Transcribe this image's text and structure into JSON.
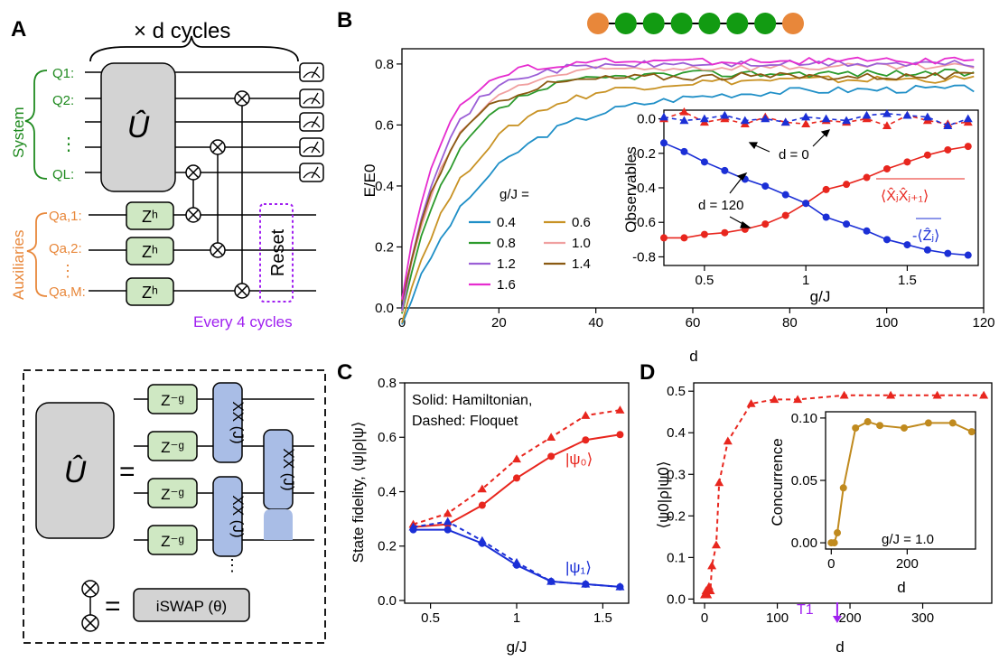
{
  "panels": {
    "a": "A",
    "b": "B",
    "c": "C",
    "d": "D"
  },
  "circuit": {
    "cycles_label": "× d cycles",
    "system_label": "System",
    "aux_label": "Auxiliaries",
    "qubits": [
      "Q1:",
      "Q2:",
      "⋮",
      "QL:"
    ],
    "aux_qubits": [
      "Qa,1:",
      "Qa,2:",
      "⋮",
      "Qa,M:"
    ],
    "u_label": "Û",
    "zh_label": "Zʰ",
    "reset_label": "Reset",
    "every_label": "Every 4 cycles",
    "eq_sign": "=",
    "zg_label": "Z⁻ᵍ",
    "xx_label": "XX (J)",
    "dots": "⋮",
    "iswap_label": "iSWAP (θ)"
  },
  "colors": {
    "system": "#1f8a1f",
    "aux": "#e8873a",
    "reset": "#a020f0",
    "zbox": "#cfe8c3",
    "xxbox": "#a9bde6",
    "gray": "#d3d3d3"
  },
  "chart_data": [
    {
      "id": "B",
      "type": "line",
      "xlabel": "d",
      "ylabel": "E/E0",
      "xlim": [
        0,
        120
      ],
      "ylim": [
        0,
        0.85
      ],
      "xticks": [
        0,
        20,
        40,
        60,
        80,
        100,
        120
      ],
      "yticks": [
        0.0,
        0.2,
        0.4,
        0.6,
        0.8
      ],
      "legend_title": "g/J =",
      "chain": {
        "ends": "#e8873a",
        "middle": "#129b12",
        "count": 8
      },
      "series": [
        {
          "name": "0.4",
          "color": "#1f8fc7",
          "final": 0.72,
          "rate": 0.055
        },
        {
          "name": "0.6",
          "color": "#c89224",
          "final": 0.75,
          "rate": 0.07
        },
        {
          "name": "0.8",
          "color": "#2c9a2c",
          "final": 0.77,
          "rate": 0.09
        },
        {
          "name": "1.0",
          "color": "#f0a0a0",
          "final": 0.79,
          "rate": 0.1
        },
        {
          "name": "1.2",
          "color": "#9b5fd6",
          "final": 0.8,
          "rate": 0.11
        },
        {
          "name": "1.4",
          "color": "#8a5a12",
          "final": 0.76,
          "rate": 0.1
        },
        {
          "name": "1.6",
          "color": "#e62ccf",
          "final": 0.81,
          "rate": 0.12
        }
      ]
    },
    {
      "id": "B-inset",
      "type": "line",
      "xlabel": "g/J",
      "ylabel": "Observables",
      "xlim": [
        0.3,
        1.85
      ],
      "ylim": [
        -0.85,
        0.05
      ],
      "xticks": [
        0.5,
        1.0,
        1.5
      ],
      "yticks": [
        0.0,
        -0.2,
        -0.4,
        -0.6,
        -0.8
      ],
      "annotations": [
        "d = 0",
        "d = 120"
      ],
      "series_labels": [
        "⟨X̂ⱼX̂ⱼ₊₁⟩",
        "-⟨Ẑⱼ⟩"
      ],
      "x": [
        0.3,
        0.4,
        0.5,
        0.6,
        0.7,
        0.8,
        0.9,
        1.0,
        1.1,
        1.2,
        1.3,
        1.4,
        1.5,
        1.6,
        1.7,
        1.8
      ],
      "series": [
        {
          "name": "XX d=120",
          "color": "#e8261e",
          "y": [
            -0.69,
            -0.69,
            -0.67,
            -0.66,
            -0.64,
            -0.61,
            -0.56,
            -0.49,
            -0.41,
            -0.38,
            -0.34,
            -0.29,
            -0.25,
            -0.21,
            -0.18,
            -0.16
          ]
        },
        {
          "name": "Z d=120",
          "color": "#1b2fd6",
          "y": [
            -0.14,
            -0.19,
            -0.25,
            -0.3,
            -0.35,
            -0.39,
            -0.44,
            -0.49,
            -0.57,
            -0.61,
            -0.65,
            -0.7,
            -0.73,
            -0.76,
            -0.78,
            -0.79
          ]
        },
        {
          "name": "XX d=0",
          "color": "#e8261e",
          "y": [
            0.0,
            0.04,
            -0.02,
            0.0,
            -0.03,
            0.01,
            -0.02,
            -0.03,
            -0.01,
            -0.02,
            0.0,
            -0.04,
            0.02,
            -0.01,
            -0.03,
            -0.02
          ]
        },
        {
          "name": "Z d=0",
          "color": "#1b2fd6",
          "y": [
            0.01,
            -0.01,
            0.0,
            0.02,
            -0.01,
            0.0,
            -0.02,
            0.01,
            0.0,
            -0.01,
            0.02,
            0.03,
            0.02,
            0.01,
            -0.04,
            0.0
          ]
        }
      ]
    },
    {
      "id": "C",
      "type": "line",
      "xlabel": "g/J",
      "ylabel": "State fidelity, ⟨ψ|ρ|ψ⟩",
      "xlim": [
        0.35,
        1.65
      ],
      "ylim": [
        -0.01,
        0.8
      ],
      "xticks": [
        0.5,
        1.0,
        1.5
      ],
      "yticks": [
        0.0,
        0.2,
        0.4,
        0.6,
        0.8
      ],
      "note_lines": [
        "Solid: Hamiltonian,",
        "Dashed: Floquet"
      ],
      "state_labels": [
        "|ψ₀⟩",
        "|ψ₁⟩"
      ],
      "x": [
        0.4,
        0.6,
        0.8,
        1.0,
        1.2,
        1.4,
        1.6
      ],
      "series": [
        {
          "name": "psi0 Hamiltonian",
          "color": "#e8261e",
          "dash": false,
          "marker": "circle",
          "y": [
            0.27,
            0.28,
            0.35,
            0.45,
            0.53,
            0.59,
            0.61
          ]
        },
        {
          "name": "psi0 Floquet",
          "color": "#e8261e",
          "dash": true,
          "marker": "triangle",
          "y": [
            0.28,
            0.32,
            0.41,
            0.52,
            0.6,
            0.68,
            0.7
          ]
        },
        {
          "name": "psi1 Hamiltonian",
          "color": "#1b2fd6",
          "dash": false,
          "marker": "circle",
          "y": [
            0.26,
            0.26,
            0.21,
            0.13,
            0.07,
            0.06,
            0.05
          ]
        },
        {
          "name": "psi1 Floquet",
          "color": "#1b2fd6",
          "dash": true,
          "marker": "triangle",
          "y": [
            0.27,
            0.29,
            0.22,
            0.14,
            0.07,
            0.06,
            0.05
          ]
        }
      ]
    },
    {
      "id": "D",
      "type": "line",
      "xlabel": "d",
      "ylabel": "⟨ψ0|ρ|ψ0⟩",
      "xlim": [
        -15,
        395
      ],
      "ylim": [
        -0.01,
        0.52
      ],
      "xticks": [
        0,
        100,
        200,
        300
      ],
      "yticks": [
        0.0,
        0.1,
        0.2,
        0.3,
        0.4,
        0.5
      ],
      "t1_label": "T1",
      "t1_value": 170,
      "x": [
        0,
        2,
        4,
        6,
        8,
        10,
        16,
        20,
        32,
        64,
        96,
        128,
        192,
        256,
        320,
        384
      ],
      "series": [
        {
          "name": "fidelity",
          "color": "#e8261e",
          "dash": true,
          "y": [
            0.01,
            0.02,
            0.01,
            0.03,
            0.02,
            0.08,
            0.13,
            0.28,
            0.38,
            0.47,
            0.48,
            0.48,
            0.49,
            0.49,
            0.49,
            0.49
          ]
        }
      ]
    },
    {
      "id": "D-inset",
      "type": "line",
      "xlabel": "d",
      "ylabel": "Concurrence",
      "annotation": "g/J = 1.0",
      "xlim": [
        -15,
        380
      ],
      "ylim": [
        -0.005,
        0.105
      ],
      "xticks": [
        0,
        200
      ],
      "yticks": [
        0.0,
        0.05,
        0.1
      ],
      "x": [
        0,
        8,
        16,
        32,
        64,
        96,
        128,
        192,
        256,
        320,
        370
      ],
      "series": [
        {
          "name": "concurrence",
          "color": "#c08a1e",
          "y": [
            0.0,
            0.0,
            0.008,
            0.044,
            0.092,
            0.097,
            0.094,
            0.092,
            0.096,
            0.096,
            0.089
          ]
        }
      ]
    }
  ]
}
